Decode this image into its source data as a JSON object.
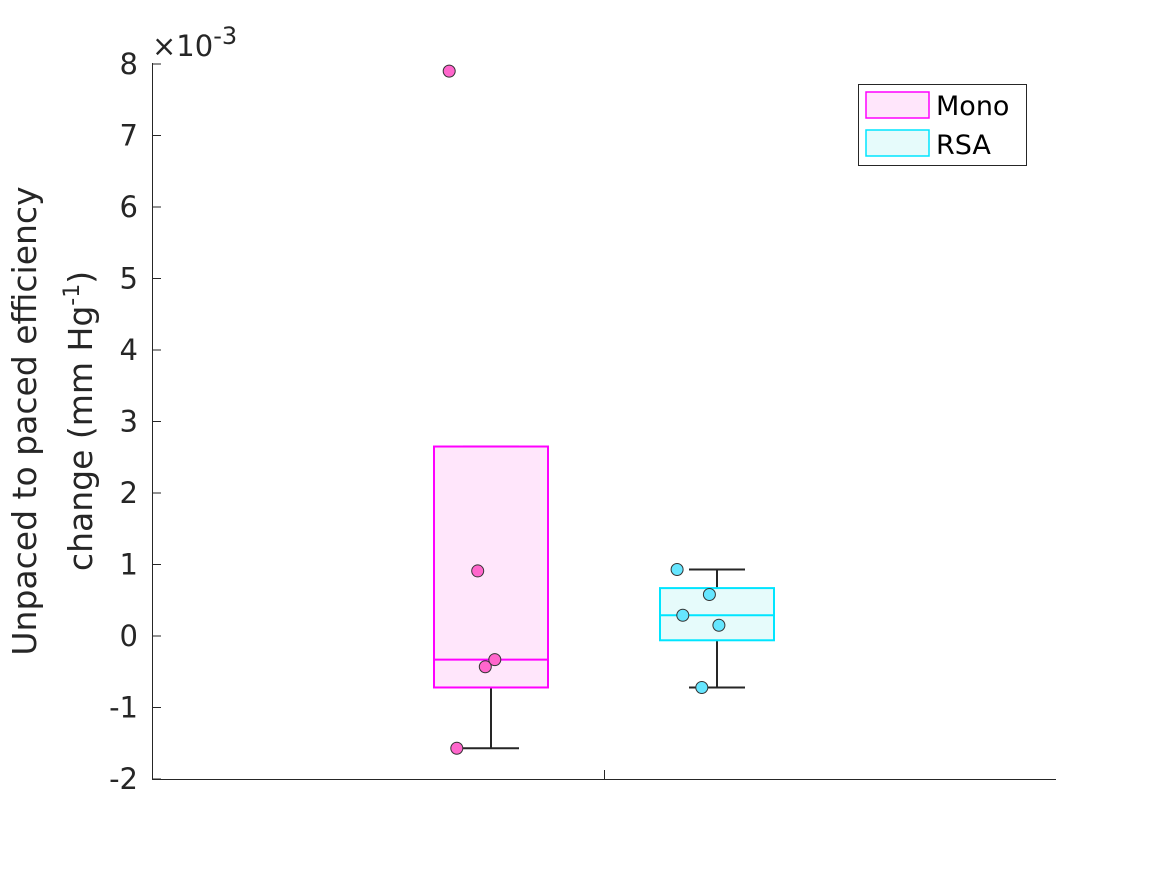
{
  "chart_data": {
    "type": "box",
    "ylabel_line1": "Unpaced to paced efficiency",
    "ylabel_line2_prefix": "change (mm Hg",
    "ylabel_line2_sup": "-1",
    "ylabel_line2_suffix": ")",
    "y_multiplier_prefix": "×10",
    "y_multiplier_exponent": "-3",
    "ylim": [
      -2,
      8
    ],
    "yticks": [
      "-2",
      "-1",
      "0",
      "1",
      "2",
      "3",
      "4",
      "5",
      "6",
      "7",
      "8"
    ],
    "grid": false,
    "legend_position": "top-right",
    "series": [
      {
        "name": "Mono",
        "color": "#ff00ff",
        "fill": "#ffe6fb",
        "marker_color": "#ff66cc",
        "q1": -0.72,
        "median": -0.33,
        "q3": 2.65,
        "whisker_low": -1.57,
        "whisker_high": 2.65,
        "points": [
          {
            "offset": -0.22,
            "y": 7.9
          },
          {
            "offset": -0.07,
            "y": 0.91
          },
          {
            "offset": -0.03,
            "y": -0.43
          },
          {
            "offset": 0.02,
            "y": -0.33
          },
          {
            "offset": -0.18,
            "y": -1.57
          }
        ]
      },
      {
        "name": "RSA",
        "color": "#00e5ff",
        "fill": "#e6fbfb",
        "marker_color": "#66e6ff",
        "q1": -0.06,
        "median": 0.29,
        "q3": 0.67,
        "whisker_low": -0.72,
        "whisker_high": 0.93,
        "points": [
          {
            "offset": -0.21,
            "y": 0.93
          },
          {
            "offset": -0.18,
            "y": 0.29
          },
          {
            "offset": -0.04,
            "y": 0.58
          },
          {
            "offset": 0.01,
            "y": 0.15
          },
          {
            "offset": -0.08,
            "y": -0.72
          }
        ]
      }
    ]
  }
}
